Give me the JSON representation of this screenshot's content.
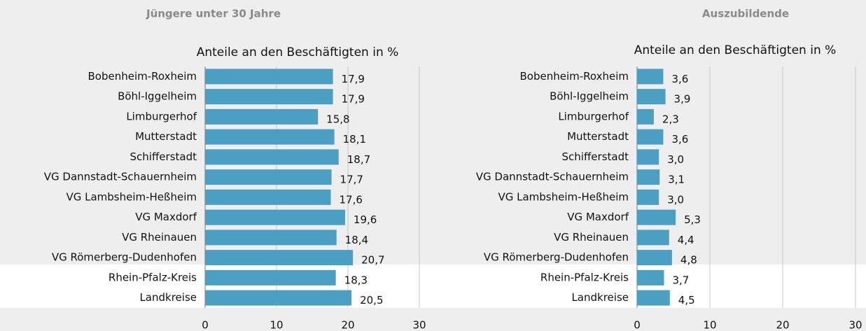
{
  "chart_data": [
    {
      "type": "bar",
      "orientation": "horizontal",
      "title": "Jüngere unter 30 Jahre",
      "subtitle": "Anteile an den Beschäftigten in %",
      "categories": [
        "Bobenheim-Roxheim",
        "Böhl-Iggelheim",
        "Limburgerhof",
        "Mutterstadt",
        "Schifferstadt",
        "VG Dannstadt-Schauernheim",
        "VG Lambsheim-Heßheim",
        "VG Maxdorf",
        "VG Rheinauen",
        "VG Römerberg-Dudenhofen",
        "Rhein-Pfalz-Kreis",
        "Landkreise"
      ],
      "values": [
        17.9,
        17.9,
        15.8,
        18.1,
        18.7,
        17.7,
        17.6,
        19.6,
        18.4,
        20.7,
        18.3,
        20.5
      ],
      "value_labels": [
        "17,9",
        "17,9",
        "15,8",
        "18,1",
        "18,7",
        "17,7",
        "17,6",
        "19,6",
        "18,4",
        "20,7",
        "18,3",
        "20,5"
      ],
      "color": "#4a9fc3",
      "xlim": [
        0,
        30
      ],
      "xticks": [
        0,
        10,
        20,
        30
      ],
      "grid": true
    },
    {
      "type": "bar",
      "orientation": "horizontal",
      "title": "Auszubildende",
      "subtitle": "Anteile an den Beschäftigten in %",
      "categories": [
        "Bobenheim-Roxheim",
        "Böhl-Iggelheim",
        "Limburgerhof",
        "Mutterstadt",
        "Schifferstadt",
        "VG Dannstadt-Schauernheim",
        "VG Lambsheim-Heßheim",
        "VG Maxdorf",
        "VG Rheinauen",
        "VG Römerberg-Dudenhofen",
        "Rhein-Pfalz-Kreis",
        "Landkreise"
      ],
      "values": [
        3.6,
        3.9,
        2.3,
        3.6,
        3.0,
        3.1,
        3.0,
        5.3,
        4.4,
        4.8,
        3.7,
        4.5
      ],
      "value_labels": [
        "3,6",
        "3,9",
        "2,3",
        "3,6",
        "3,0",
        "3,1",
        "3,0",
        "5,3",
        "4,4",
        "4,8",
        "3,7",
        "4,5"
      ],
      "color": "#4a9fc3",
      "xlim": [
        0,
        30
      ],
      "xticks": [
        0,
        10,
        20,
        30
      ],
      "grid": true
    }
  ]
}
